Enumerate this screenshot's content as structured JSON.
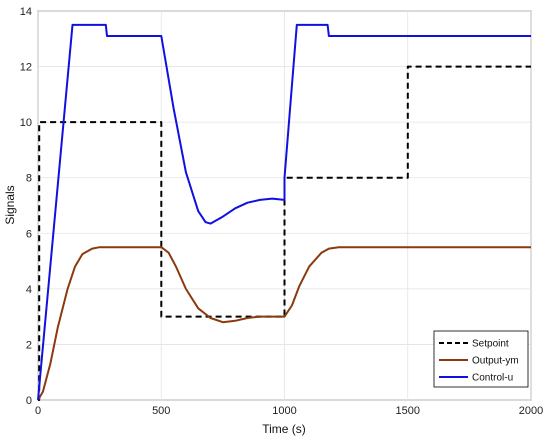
{
  "chart_data": {
    "type": "line",
    "xlabel": "Time (s)",
    "ylabel": "Signals",
    "xlim": [
      0,
      2000
    ],
    "ylim": [
      0,
      14
    ],
    "grid": true,
    "legend_position": "bottom-right",
    "x_ticks": [
      0,
      500,
      1000,
      1500,
      2000
    ],
    "y_ticks": [
      0,
      2,
      4,
      6,
      8,
      10,
      12,
      14
    ],
    "series": [
      {
        "name": "Setpoint",
        "color": "#000000",
        "style": "dashed",
        "x": [
          0,
          5,
          5,
          500,
          500,
          1000,
          1000,
          1500,
          1500,
          2000
        ],
        "y": [
          0,
          0,
          10,
          10,
          3,
          3,
          8,
          8,
          12,
          12
        ]
      },
      {
        "name": "Output-ym",
        "color": "#8b3a0f",
        "style": "solid",
        "x": [
          0,
          20,
          50,
          80,
          120,
          150,
          180,
          220,
          250,
          300,
          400,
          500,
          530,
          560,
          600,
          650,
          700,
          750,
          800,
          850,
          900,
          950,
          1000,
          1030,
          1060,
          1100,
          1150,
          1180,
          1220,
          1300,
          1500,
          2000
        ],
        "y": [
          0,
          0.3,
          1.3,
          2.6,
          4.0,
          4.8,
          5.25,
          5.45,
          5.5,
          5.5,
          5.5,
          5.5,
          5.3,
          4.8,
          4.0,
          3.3,
          2.95,
          2.8,
          2.85,
          2.95,
          3.0,
          3.0,
          3.0,
          3.4,
          4.1,
          4.8,
          5.3,
          5.45,
          5.5,
          5.5,
          5.5,
          5.5
        ]
      },
      {
        "name": "Control-u",
        "color": "#1010e0",
        "style": "solid",
        "x": [
          0,
          140,
          275,
          280,
          500,
          550,
          600,
          650,
          680,
          700,
          750,
          800,
          850,
          900,
          950,
          1000,
          1000,
          1050,
          1070,
          1175,
          1180,
          2000
        ],
        "y": [
          0,
          13.5,
          13.5,
          13.1,
          13.1,
          10.5,
          8.2,
          6.8,
          6.4,
          6.35,
          6.6,
          6.9,
          7.1,
          7.2,
          7.25,
          7.2,
          8.0,
          13.5,
          13.5,
          13.5,
          13.1,
          13.1
        ]
      }
    ]
  }
}
